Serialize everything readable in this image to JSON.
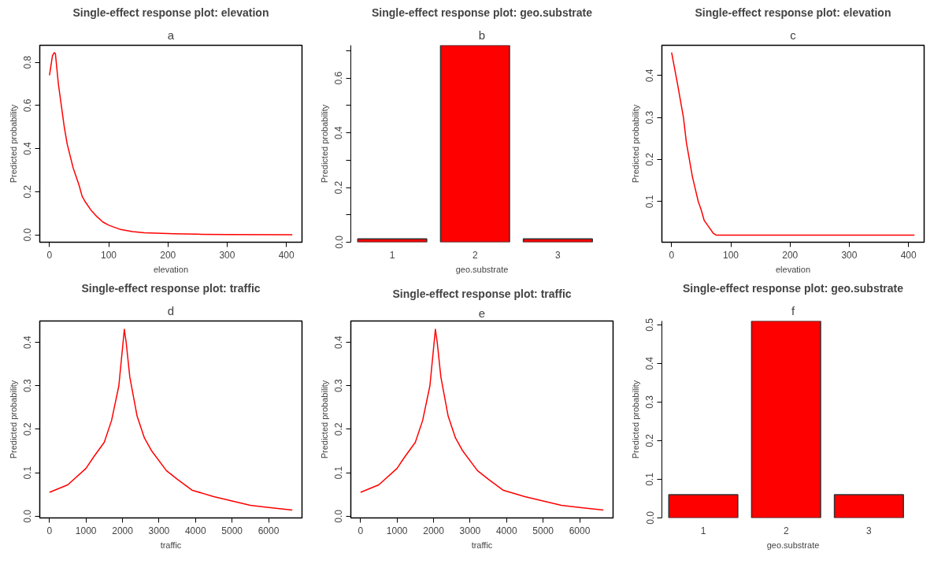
{
  "chart_data": [
    {
      "type": "line",
      "title": "Single-effect response plot: elevation",
      "subtitle": "a",
      "xlabel": "elevation",
      "ylabel": "Predicted probability",
      "x": [
        0,
        5,
        8,
        10,
        15,
        20,
        25,
        30,
        40,
        50,
        55,
        60,
        70,
        80,
        90,
        100,
        110,
        120,
        140,
        160,
        210,
        250,
        300,
        410
      ],
      "series": [
        {
          "color": "#ff0000",
          "values": [
            0.74,
            0.83,
            0.845,
            0.84,
            0.7,
            0.6,
            0.5,
            0.42,
            0.31,
            0.23,
            0.18,
            0.155,
            0.115,
            0.085,
            0.06,
            0.045,
            0.035,
            0.025,
            0.015,
            0.01,
            0.005,
            0.003,
            0.002,
            0.001
          ]
        }
      ],
      "xlim": [
        -16.4,
        426.4
      ],
      "ylim": [
        -0.034,
        0.879
      ],
      "xticks": [
        0,
        100,
        200,
        300,
        400
      ],
      "yticks": [
        {
          "value": 0,
          "label": "0.0"
        },
        0.2,
        0.4,
        0.6,
        0.8
      ]
    },
    {
      "type": "bar",
      "title": "Single-effect response plot: geo.substrate",
      "subtitle": "b",
      "xlabel": "geo.substrate",
      "ylabel": "Predicted probability",
      "categories": [
        "1",
        "2",
        "3"
      ],
      "values": [
        0.012,
        0.72,
        0.012
      ],
      "color": "#ff0000",
      "ylim": [
        0,
        0.72
      ],
      "yticks": [
        {
          "value": 0,
          "label": "0.0"
        },
        {
          "value": 0.1,
          "label": null
        },
        0.2,
        {
          "value": 0.3,
          "label": null
        },
        0.4,
        {
          "value": 0.5,
          "label": null
        },
        0.6,
        {
          "value": 0.7,
          "label": null
        }
      ]
    },
    {
      "type": "line",
      "title": "Single-effect response plot: elevation",
      "subtitle": "c",
      "xlabel": "elevation",
      "ylabel": "Predicted probability",
      "x": [
        0,
        10,
        20,
        25,
        30,
        35,
        40,
        45,
        50,
        55,
        60,
        65,
        70,
        75,
        410
      ],
      "series": [
        {
          "color": "#ff0000",
          "values": [
            0.455,
            0.38,
            0.3,
            0.24,
            0.2,
            0.16,
            0.13,
            0.1,
            0.08,
            0.055,
            0.045,
            0.035,
            0.025,
            0.02,
            0.02
          ]
        }
      ],
      "xlim": [
        -16.4,
        426.4
      ],
      "ylim": [
        0.003,
        0.472
      ],
      "xticks": [
        0,
        100,
        200,
        300,
        400
      ],
      "yticks": [
        0.1,
        0.2,
        0.3,
        0.4
      ]
    },
    {
      "type": "line",
      "title": "Single-effect response plot: traffic",
      "subtitle": "d",
      "xlabel": "traffic",
      "ylabel": "Predicted probability",
      "x": [
        0,
        500,
        1000,
        1200,
        1500,
        1700,
        1900,
        2050,
        2100,
        2200,
        2400,
        2600,
        2800,
        3200,
        3500,
        3900,
        4500,
        5000,
        5500,
        6000,
        6650
      ],
      "series": [
        {
          "color": "#ff0000",
          "values": [
            0.055,
            0.072,
            0.11,
            0.135,
            0.17,
            0.22,
            0.3,
            0.43,
            0.4,
            0.32,
            0.23,
            0.18,
            0.15,
            0.105,
            0.085,
            0.06,
            0.045,
            0.035,
            0.025,
            0.02,
            0.014
          ]
        }
      ],
      "xlim": [
        -266,
        6916
      ],
      "ylim": [
        -0.004,
        0.449
      ],
      "xticks": [
        0,
        1000,
        2000,
        3000,
        4000,
        5000,
        6000
      ],
      "yticks": [
        {
          "value": 0,
          "label": "0.0"
        },
        0.1,
        0.2,
        0.3,
        0.4
      ]
    },
    {
      "type": "line",
      "title": "Single-effect response plot: traffic",
      "subtitle": "e",
      "xlabel": "traffic",
      "ylabel": "Predicted probability",
      "x": [
        0,
        500,
        1000,
        1200,
        1500,
        1700,
        1900,
        2050,
        2100,
        2200,
        2400,
        2600,
        2800,
        3200,
        3500,
        3900,
        4500,
        5000,
        5500,
        6000,
        6650
      ],
      "series": [
        {
          "color": "#ff0000",
          "values": [
            0.055,
            0.072,
            0.11,
            0.135,
            0.17,
            0.22,
            0.3,
            0.43,
            0.4,
            0.32,
            0.23,
            0.18,
            0.15,
            0.105,
            0.085,
            0.06,
            0.045,
            0.035,
            0.025,
            0.02,
            0.014
          ]
        }
      ],
      "xlim": [
        -266,
        6916
      ],
      "ylim": [
        -0.004,
        0.449
      ],
      "xticks": [
        0,
        1000,
        2000,
        3000,
        4000,
        5000,
        6000
      ],
      "yticks": [
        {
          "value": 0,
          "label": "0.0"
        },
        0.1,
        0.2,
        0.3,
        0.4
      ]
    },
    {
      "type": "bar",
      "title": "Single-effect response plot: geo.substrate",
      "subtitle": "f",
      "xlabel": "geo.substrate",
      "ylabel": "Predicted probability",
      "categories": [
        "1",
        "2",
        "3"
      ],
      "values": [
        0.06,
        0.51,
        0.06
      ],
      "color": "#ff0000",
      "ylim": [
        0,
        0.51
      ],
      "yticks": [
        {
          "value": 0,
          "label": "0.0"
        },
        0.1,
        0.2,
        0.3,
        0.4,
        0.5
      ]
    }
  ]
}
